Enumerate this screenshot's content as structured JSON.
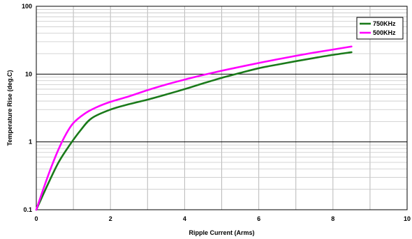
{
  "chart_data": {
    "type": "line",
    "title": "",
    "xlabel": "Ripple Current (Arms)",
    "ylabel": "Temperature Rise (deg.C)",
    "xlim": [
      0,
      10
    ],
    "ylim": [
      0.1,
      100
    ],
    "yscale": "log",
    "x_ticks": [
      "0",
      "2",
      "4",
      "6",
      "8",
      "10"
    ],
    "y_ticks": [
      "0.1",
      "1",
      "10",
      "100"
    ],
    "grid": true,
    "legend_position": "top-right",
    "series": [
      {
        "name": "750KHz",
        "color": "#1a7a1a",
        "x": [
          0,
          0.3,
          0.6,
          0.9,
          1.2,
          1.5,
          2.0,
          2.5,
          3.0,
          3.5,
          4.0,
          4.5,
          5.0,
          5.5,
          6.0,
          6.5,
          7.0,
          7.5,
          8.0,
          8.5
        ],
        "y": [
          0.1,
          0.23,
          0.5,
          0.9,
          1.5,
          2.25,
          3.0,
          3.6,
          4.2,
          5.0,
          6.0,
          7.3,
          8.8,
          10.4,
          12.2,
          13.8,
          15.5,
          17.3,
          19.2,
          21.0
        ]
      },
      {
        "name": "500KHz",
        "color": "#ff00ff",
        "x": [
          0,
          0.2,
          0.4,
          0.6,
          0.8,
          1.0,
          1.3,
          1.6,
          2.0,
          2.5,
          3.0,
          3.5,
          4.0,
          4.5,
          5.0,
          5.5,
          6.0,
          6.5,
          7.0,
          7.5,
          8.0,
          8.5
        ],
        "y": [
          0.1,
          0.21,
          0.42,
          0.78,
          1.3,
          1.9,
          2.6,
          3.2,
          3.9,
          4.7,
          5.8,
          7.0,
          8.3,
          9.7,
          11.2,
          12.8,
          14.6,
          16.5,
          18.6,
          20.8,
          23.0,
          25.5
        ]
      }
    ]
  }
}
